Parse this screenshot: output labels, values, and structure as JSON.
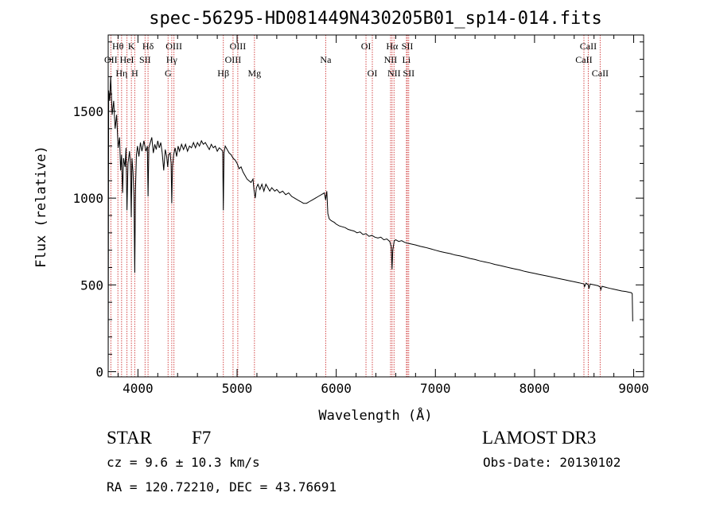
{
  "chart_data": {
    "type": "line",
    "title": "spec-56295-HD081449N430205B01_sp14-014.fits",
    "xlabel": "Wavelength (Å)",
    "ylabel": "Flux (relative)",
    "xlim": [
      3700,
      9100
    ],
    "ylim": [
      -30,
      1940
    ],
    "x_ticks": [
      4000,
      5000,
      6000,
      7000,
      8000,
      9000
    ],
    "x_tick_labels": [
      "4000",
      "5000",
      "6000",
      "7000",
      "8000",
      "9000"
    ],
    "y_ticks": [
      0,
      500,
      1000,
      1500
    ],
    "y_tick_labels": [
      "0",
      "500",
      "1000",
      "1500"
    ],
    "series": [
      {
        "name": "spectrum",
        "points": [
          [
            3700,
            0
          ],
          [
            3705,
            1620
          ],
          [
            3715,
            1560
          ],
          [
            3725,
            1700
          ],
          [
            3740,
            1480
          ],
          [
            3755,
            1560
          ],
          [
            3770,
            1400
          ],
          [
            3785,
            1480
          ],
          [
            3800,
            1290
          ],
          [
            3815,
            1350
          ],
          [
            3825,
            1160
          ],
          [
            3835,
            1250
          ],
          [
            3845,
            1030
          ],
          [
            3855,
            1230
          ],
          [
            3870,
            1180
          ],
          [
            3880,
            1290
          ],
          [
            3889,
            930
          ],
          [
            3900,
            1200
          ],
          [
            3915,
            1270
          ],
          [
            3925,
            1190
          ],
          [
            3933,
            890
          ],
          [
            3940,
            1230
          ],
          [
            3950,
            1150
          ],
          [
            3960,
            1010
          ],
          [
            3968,
            570
          ],
          [
            3975,
            1050
          ],
          [
            3985,
            1250
          ],
          [
            3995,
            1300
          ],
          [
            4010,
            1240
          ],
          [
            4025,
            1320
          ],
          [
            4040,
            1270
          ],
          [
            4060,
            1330
          ],
          [
            4080,
            1270
          ],
          [
            4095,
            1300
          ],
          [
            4102,
            1010
          ],
          [
            4110,
            1290
          ],
          [
            4125,
            1320
          ],
          [
            4140,
            1350
          ],
          [
            4155,
            1260
          ],
          [
            4170,
            1310
          ],
          [
            4185,
            1280
          ],
          [
            4200,
            1330
          ],
          [
            4215,
            1290
          ],
          [
            4230,
            1320
          ],
          [
            4245,
            1260
          ],
          [
            4260,
            1160
          ],
          [
            4275,
            1280
          ],
          [
            4290,
            1240
          ],
          [
            4300,
            1180
          ],
          [
            4310,
            1250
          ],
          [
            4325,
            1260
          ],
          [
            4335,
            1200
          ],
          [
            4341,
            970
          ],
          [
            4348,
            1180
          ],
          [
            4360,
            1250
          ],
          [
            4375,
            1290
          ],
          [
            4390,
            1240
          ],
          [
            4405,
            1300
          ],
          [
            4420,
            1270
          ],
          [
            4440,
            1310
          ],
          [
            4460,
            1280
          ],
          [
            4480,
            1310
          ],
          [
            4500,
            1270
          ],
          [
            4520,
            1300
          ],
          [
            4540,
            1290
          ],
          [
            4560,
            1320
          ],
          [
            4580,
            1290
          ],
          [
            4600,
            1320
          ],
          [
            4620,
            1300
          ],
          [
            4640,
            1330
          ],
          [
            4660,
            1310
          ],
          [
            4680,
            1320
          ],
          [
            4700,
            1300
          ],
          [
            4720,
            1280
          ],
          [
            4740,
            1310
          ],
          [
            4760,
            1290
          ],
          [
            4780,
            1300
          ],
          [
            4800,
            1270
          ],
          [
            4820,
            1290
          ],
          [
            4840,
            1280
          ],
          [
            4855,
            1270
          ],
          [
            4861,
            930
          ],
          [
            4868,
            1260
          ],
          [
            4880,
            1300
          ],
          [
            4900,
            1280
          ],
          [
            4920,
            1260
          ],
          [
            4940,
            1250
          ],
          [
            4960,
            1230
          ],
          [
            4980,
            1220
          ],
          [
            5000,
            1200
          ],
          [
            5020,
            1170
          ],
          [
            5040,
            1180
          ],
          [
            5060,
            1150
          ],
          [
            5080,
            1130
          ],
          [
            5100,
            1110
          ],
          [
            5120,
            1100
          ],
          [
            5140,
            1090
          ],
          [
            5160,
            1110
          ],
          [
            5170,
            1050
          ],
          [
            5183,
            1000
          ],
          [
            5195,
            1060
          ],
          [
            5210,
            1080
          ],
          [
            5230,
            1050
          ],
          [
            5250,
            1080
          ],
          [
            5270,
            1040
          ],
          [
            5290,
            1080
          ],
          [
            5310,
            1060
          ],
          [
            5330,
            1040
          ],
          [
            5350,
            1060
          ],
          [
            5380,
            1040
          ],
          [
            5400,
            1050
          ],
          [
            5430,
            1030
          ],
          [
            5460,
            1040
          ],
          [
            5490,
            1020
          ],
          [
            5520,
            1030
          ],
          [
            5550,
            1010
          ],
          [
            5580,
            1000
          ],
          [
            5610,
            990
          ],
          [
            5640,
            980
          ],
          [
            5670,
            970
          ],
          [
            5700,
            970
          ],
          [
            5730,
            980
          ],
          [
            5760,
            990
          ],
          [
            5790,
            1000
          ],
          [
            5820,
            1010
          ],
          [
            5850,
            1020
          ],
          [
            5880,
            1030
          ],
          [
            5893,
            990
          ],
          [
            5905,
            1040
          ],
          [
            5915,
            910
          ],
          [
            5930,
            880
          ],
          [
            5950,
            870
          ],
          [
            5980,
            860
          ],
          [
            6000,
            850
          ],
          [
            6030,
            840
          ],
          [
            6060,
            835
          ],
          [
            6090,
            830
          ],
          [
            6120,
            820
          ],
          [
            6150,
            815
          ],
          [
            6180,
            810
          ],
          [
            6210,
            800
          ],
          [
            6240,
            805
          ],
          [
            6270,
            790
          ],
          [
            6300,
            795
          ],
          [
            6330,
            780
          ],
          [
            6360,
            785
          ],
          [
            6390,
            775
          ],
          [
            6420,
            770
          ],
          [
            6450,
            775
          ],
          [
            6480,
            760
          ],
          [
            6510,
            765
          ],
          [
            6540,
            750
          ],
          [
            6555,
            720
          ],
          [
            6563,
            590
          ],
          [
            6570,
            700
          ],
          [
            6585,
            755
          ],
          [
            6600,
            760
          ],
          [
            6630,
            750
          ],
          [
            6660,
            755
          ],
          [
            6690,
            745
          ],
          [
            6720,
            740
          ],
          [
            6760,
            735
          ],
          [
            6800,
            730
          ],
          [
            6850,
            722
          ],
          [
            6900,
            716
          ],
          [
            6950,
            708
          ],
          [
            7000,
            700
          ],
          [
            7050,
            692
          ],
          [
            7100,
            686
          ],
          [
            7150,
            680
          ],
          [
            7200,
            672
          ],
          [
            7250,
            667
          ],
          [
            7300,
            660
          ],
          [
            7350,
            652
          ],
          [
            7400,
            646
          ],
          [
            7450,
            638
          ],
          [
            7500,
            632
          ],
          [
            7550,
            626
          ],
          [
            7600,
            618
          ],
          [
            7650,
            612
          ],
          [
            7700,
            605
          ],
          [
            7750,
            598
          ],
          [
            7800,
            592
          ],
          [
            7850,
            586
          ],
          [
            7900,
            578
          ],
          [
            7950,
            572
          ],
          [
            8000,
            566
          ],
          [
            8050,
            560
          ],
          [
            8100,
            554
          ],
          [
            8150,
            548
          ],
          [
            8200,
            542
          ],
          [
            8250,
            536
          ],
          [
            8300,
            530
          ],
          [
            8350,
            524
          ],
          [
            8400,
            518
          ],
          [
            8450,
            512
          ],
          [
            8498,
            505
          ],
          [
            8505,
            490
          ],
          [
            8520,
            510
          ],
          [
            8542,
            500
          ],
          [
            8549,
            478
          ],
          [
            8560,
            505
          ],
          [
            8600,
            500
          ],
          [
            8640,
            495
          ],
          [
            8662,
            488
          ],
          [
            8668,
            472
          ],
          [
            8680,
            492
          ],
          [
            8720,
            486
          ],
          [
            8760,
            480
          ],
          [
            8800,
            475
          ],
          [
            8840,
            470
          ],
          [
            8880,
            465
          ],
          [
            8920,
            462
          ],
          [
            8950,
            458
          ],
          [
            8975,
            455
          ],
          [
            8985,
            450
          ],
          [
            8990,
            290
          ]
        ]
      }
    ],
    "lines": [
      {
        "name": "OII",
        "x": 3727,
        "row": 2
      },
      {
        "name": "Hθ",
        "x": 3798,
        "row": 1
      },
      {
        "name": "Hη",
        "x": 3835,
        "row": 3
      },
      {
        "name": "HeI",
        "x": 3889,
        "row": 2
      },
      {
        "name": "K",
        "x": 3934,
        "row": 1
      },
      {
        "name": "H",
        "x": 3968,
        "row": 3
      },
      {
        "name": "SII",
        "x": 4072,
        "row": 2
      },
      {
        "name": "Hδ",
        "x": 4102,
        "row": 1
      },
      {
        "name": "G",
        "x": 4304,
        "row": 3
      },
      {
        "name": "Hγ",
        "x": 4341,
        "row": 2
      },
      {
        "name": "OIII",
        "x": 4363,
        "row": 1
      },
      {
        "name": "Hβ",
        "x": 4861,
        "row": 3
      },
      {
        "name": "OIII",
        "x": 4959,
        "row": 2
      },
      {
        "name": "OIII",
        "x": 5007,
        "row": 1
      },
      {
        "name": "Mg",
        "x": 5175,
        "row": 3
      },
      {
        "name": "Na",
        "x": 5894,
        "row": 2
      },
      {
        "name": "OI",
        "x": 6300,
        "row": 1
      },
      {
        "name": "OI",
        "x": 6364,
        "row": 3
      },
      {
        "name": "NII",
        "x": 6548,
        "row": 2
      },
      {
        "name": "Hα",
        "x": 6563,
        "row": 1
      },
      {
        "name": "NII",
        "x": 6583,
        "row": 3
      },
      {
        "name": "Li",
        "x": 6708,
        "row": 2
      },
      {
        "name": "SII",
        "x": 6717,
        "row": 1
      },
      {
        "name": "SII",
        "x": 6731,
        "row": 3
      },
      {
        "name": "CaII",
        "x": 8498,
        "row": 2
      },
      {
        "name": "CaII",
        "x": 8542,
        "row": 1
      },
      {
        "name": "CaII",
        "x": 8662,
        "row": 3
      }
    ]
  },
  "info": {
    "object_type": "STAR",
    "subclass": "F7",
    "survey": "LAMOST DR3",
    "cz": "cz = 9.6 ± 10.3 km/s",
    "obs_date": "Obs-Date: 20130102",
    "coords": "RA = 120.72210, DEC =  43.76691"
  },
  "colors": {
    "spectrum": "#000000",
    "line_marker": "#d44a4a",
    "axis": "#000000"
  }
}
